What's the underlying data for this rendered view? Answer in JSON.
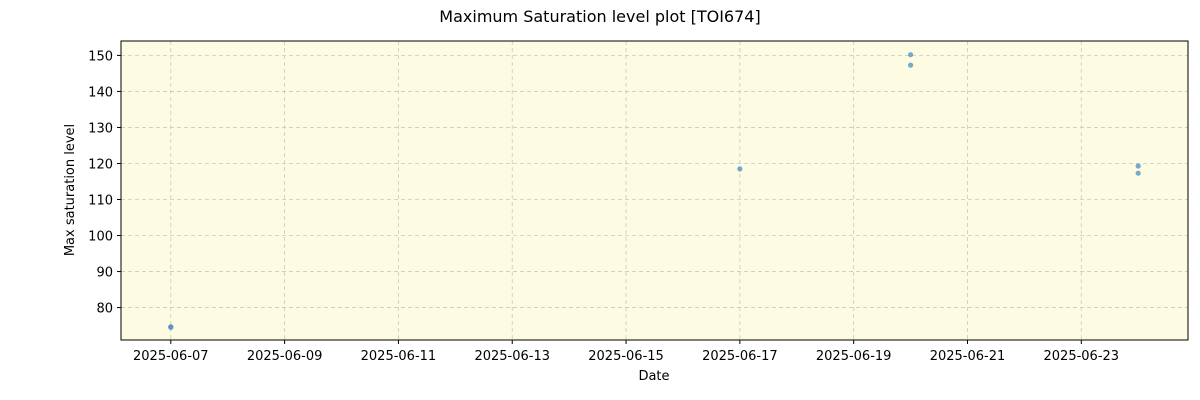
{
  "chart_data": {
    "type": "scatter",
    "title": "Maximum Saturation level plot [TOI674]",
    "xlabel": "Date",
    "ylabel": "Max saturation level",
    "x_ticks": [
      "2025-06-07",
      "2025-06-09",
      "2025-06-11",
      "2025-06-13",
      "2025-06-15",
      "2025-06-17",
      "2025-06-19",
      "2025-06-21",
      "2025-06-23"
    ],
    "y_ticks": [
      80,
      90,
      100,
      110,
      120,
      130,
      140,
      150
    ],
    "xlim": [
      "2025-06-06T03:00",
      "2025-06-24T21:00"
    ],
    "ylim": [
      71,
      154
    ],
    "grid": true,
    "background_color": "#fdfbe1",
    "point_color": "#4a8fc0",
    "points": [
      {
        "x": "2025-06-07T00:00",
        "y": 74.7
      },
      {
        "x": "2025-06-07T00:00",
        "y": 74.5
      },
      {
        "x": "2025-06-17T00:00",
        "y": 118.5
      },
      {
        "x": "2025-06-20T00:00",
        "y": 150.2
      },
      {
        "x": "2025-06-20T00:00",
        "y": 147.3
      },
      {
        "x": "2025-06-24T00:00",
        "y": 119.3
      },
      {
        "x": "2025-06-24T00:00",
        "y": 117.3
      }
    ]
  }
}
